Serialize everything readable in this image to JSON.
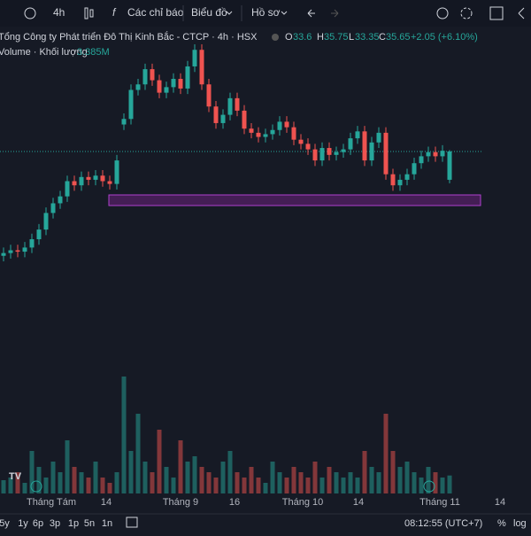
{
  "toolbar": {
    "interval": "4h",
    "indicators": "Các chỉ báo",
    "chart": "Biểu đồ",
    "profile": "Hồ sơ"
  },
  "legend": {
    "title": "Tổng Công ty Phát triển Đô Thị Kinh Bắc - CTCP · 4h · HSX",
    "o": "O",
    "h": "H",
    "l": "L",
    "c": "C",
    "change": "+2.05 (+6.10%)",
    "volume_title": "Volume · Khối lượng",
    "volume_value": "3.385M"
  },
  "chart_data": {
    "type": "candlestick",
    "open": [
      28.1,
      28.3,
      28.5,
      28.4,
      28.7,
      29.3,
      30.0,
      31.2,
      31.9,
      32.4,
      33.5,
      33.2,
      33.8,
      33.6,
      33.9,
      33.5,
      33.3,
      37.6,
      38.0,
      40.1,
      40.5,
      41.6,
      40.8,
      39.9,
      40.3,
      40.9,
      40.2,
      41.8,
      43.0,
      40.5,
      38.9,
      37.7,
      38.3,
      39.5,
      38.6,
      37.3,
      37.0,
      36.7,
      36.9,
      37.2,
      37.8,
      37.4,
      36.5,
      36.2,
      35.8,
      35.0,
      35.9,
      35.4,
      35.6,
      35.8,
      36.6,
      37.1,
      35.0,
      36.3,
      37.0,
      34.0,
      33.2,
      33.6,
      34.0,
      34.8,
      35.3,
      35.6,
      35.3,
      33.6
    ],
    "high": [
      28.7,
      28.9,
      28.9,
      29.1,
      29.7,
      30.4,
      31.6,
      32.3,
      32.8,
      33.9,
      33.9,
      34.2,
      34.2,
      34.3,
      34.3,
      33.9,
      35.4,
      38.4,
      40.5,
      40.9,
      42.0,
      42.0,
      41.2,
      40.7,
      41.3,
      41.3,
      42.2,
      43.4,
      43.4,
      40.9,
      39.3,
      38.7,
      39.9,
      39.9,
      39.0,
      37.7,
      37.4,
      37.3,
      37.6,
      38.2,
      38.2,
      37.8,
      36.9,
      36.6,
      36.2,
      36.3,
      36.3,
      36.0,
      36.2,
      37.0,
      37.5,
      37.5,
      36.7,
      37.4,
      37.4,
      34.4,
      34.0,
      34.4,
      35.2,
      35.7,
      36.0,
      36.0,
      36.1,
      35.75
    ],
    "low": [
      27.7,
      27.9,
      28.0,
      28.0,
      28.3,
      28.9,
      29.6,
      30.8,
      31.5,
      32.0,
      32.8,
      32.8,
      33.2,
      33.2,
      33.1,
      32.9,
      32.9,
      37.2,
      37.6,
      39.7,
      40.1,
      40.4,
      39.5,
      39.5,
      39.9,
      39.8,
      39.8,
      41.4,
      40.1,
      38.5,
      37.3,
      37.3,
      37.9,
      38.2,
      36.9,
      36.6,
      36.3,
      36.3,
      36.5,
      36.8,
      37.0,
      36.1,
      35.8,
      35.4,
      34.6,
      34.6,
      35.0,
      35.0,
      35.2,
      35.4,
      36.2,
      34.6,
      34.6,
      35.9,
      33.6,
      32.8,
      32.8,
      33.2,
      33.6,
      34.4,
      34.9,
      34.9,
      34.9,
      33.35
    ],
    "close": [
      28.3,
      28.5,
      28.4,
      28.7,
      29.3,
      30.0,
      31.2,
      31.9,
      32.4,
      33.5,
      33.2,
      33.8,
      33.6,
      33.9,
      33.5,
      33.3,
      35.0,
      38.0,
      40.1,
      40.5,
      41.6,
      40.8,
      39.9,
      40.3,
      40.9,
      40.2,
      41.8,
      43.0,
      40.5,
      38.9,
      37.7,
      38.3,
      39.5,
      38.6,
      37.3,
      37.0,
      36.7,
      36.9,
      37.2,
      37.8,
      37.4,
      36.5,
      36.2,
      35.8,
      35.0,
      35.9,
      35.4,
      35.6,
      35.8,
      36.6,
      37.1,
      35.0,
      36.3,
      37.0,
      34.0,
      33.2,
      33.6,
      34.0,
      34.8,
      35.3,
      35.6,
      35.3,
      35.7,
      35.65
    ],
    "volume": [
      2.5,
      3,
      4,
      2,
      8,
      5,
      3,
      6,
      4,
      10,
      5,
      4,
      3,
      6,
      3,
      2,
      4,
      22,
      8,
      15,
      6,
      4,
      12,
      5,
      3,
      10,
      6,
      7,
      5,
      4,
      3,
      6,
      8,
      4,
      3,
      5,
      3,
      2,
      6,
      4,
      3,
      5,
      4,
      3,
      6,
      3,
      5,
      4,
      3,
      4,
      3,
      8,
      5,
      4,
      15,
      8,
      5,
      6,
      4,
      3,
      5,
      4,
      3,
      3.385
    ],
    "up_color": "#26a69a",
    "down_color": "#ef5350"
  },
  "x_axis": [
    "Tháng Tám",
    "14",
    "Tháng 9",
    "16",
    "Tháng 10",
    "14",
    "Tháng 11",
    "14"
  ],
  "bottom_bar": {
    "ranges": [
      "5y",
      "1y",
      "6p",
      "3p",
      "1p",
      "5n",
      "1n"
    ],
    "clock": "08:12:55 (UTC+7)",
    "percent": "%",
    "log": "log"
  }
}
